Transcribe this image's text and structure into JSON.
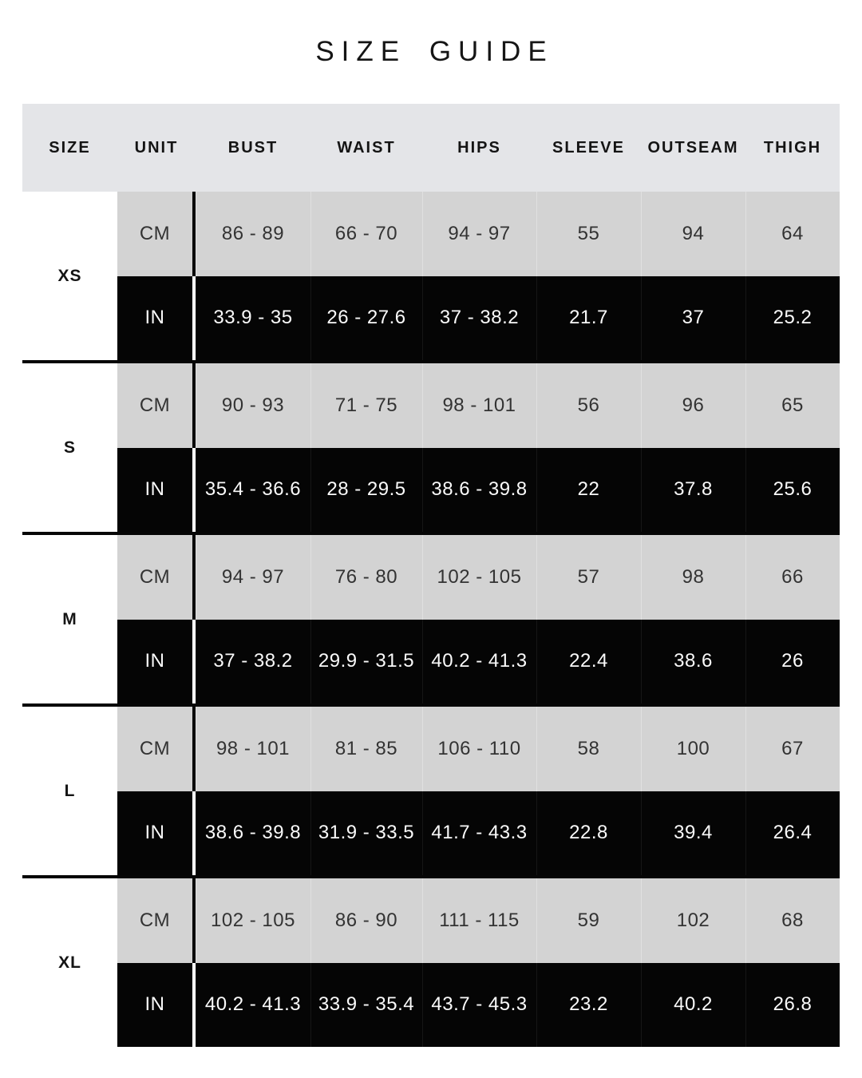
{
  "title": "SIZE GUIDE",
  "chart_data": {
    "type": "table",
    "title": "SIZE GUIDE",
    "columns": [
      "SIZE",
      "UNIT",
      "BUST",
      "WAIST",
      "HIPS",
      "SLEEVE",
      "OUTSEAM",
      "THIGH"
    ],
    "unit_row_labels": {
      "cm": "CM",
      "in": "IN"
    },
    "groups": [
      {
        "size": "XS",
        "cm": [
          "86 - 89",
          "66 - 70",
          "94 - 97",
          "55",
          "94",
          "64"
        ],
        "in": [
          "33.9 - 35",
          "26 - 27.6",
          "37 - 38.2",
          "21.7",
          "37",
          "25.2"
        ]
      },
      {
        "size": "S",
        "cm": [
          "90 - 93",
          "71 - 75",
          "98 - 101",
          "56",
          "96",
          "65"
        ],
        "in": [
          "35.4 - 36.6",
          "28 - 29.5",
          "38.6 - 39.8",
          "22",
          "37.8",
          "25.6"
        ]
      },
      {
        "size": "M",
        "cm": [
          "94 - 97",
          "76 - 80",
          "102 - 105",
          "57",
          "98",
          "66"
        ],
        "in": [
          "37 - 38.2",
          "29.9 - 31.5",
          "40.2 - 41.3",
          "22.4",
          "38.6",
          "26"
        ]
      },
      {
        "size": "L",
        "cm": [
          "98 - 101",
          "81 - 85",
          "106 - 110",
          "58",
          "100",
          "67"
        ],
        "in": [
          "38.6 - 39.8",
          "31.9 - 33.5",
          "41.7 - 43.3",
          "22.8",
          "39.4",
          "26.4"
        ]
      },
      {
        "size": "XL",
        "cm": [
          "102 - 105",
          "86 - 90",
          "111 - 115",
          "59",
          "102",
          "68"
        ],
        "in": [
          "40.2 - 41.3",
          "33.9 - 35.4",
          "43.7 - 45.3",
          "23.2",
          "40.2",
          "26.8"
        ]
      }
    ]
  },
  "colors": {
    "page_bg": "#ffffff",
    "header_bg": "#e4e5e8",
    "cm_row_bg": "#d3d3d3",
    "in_row_bg": "#050505",
    "group_separator": "#060606",
    "text_dark": "#141414",
    "text_light": "#fafafa"
  }
}
